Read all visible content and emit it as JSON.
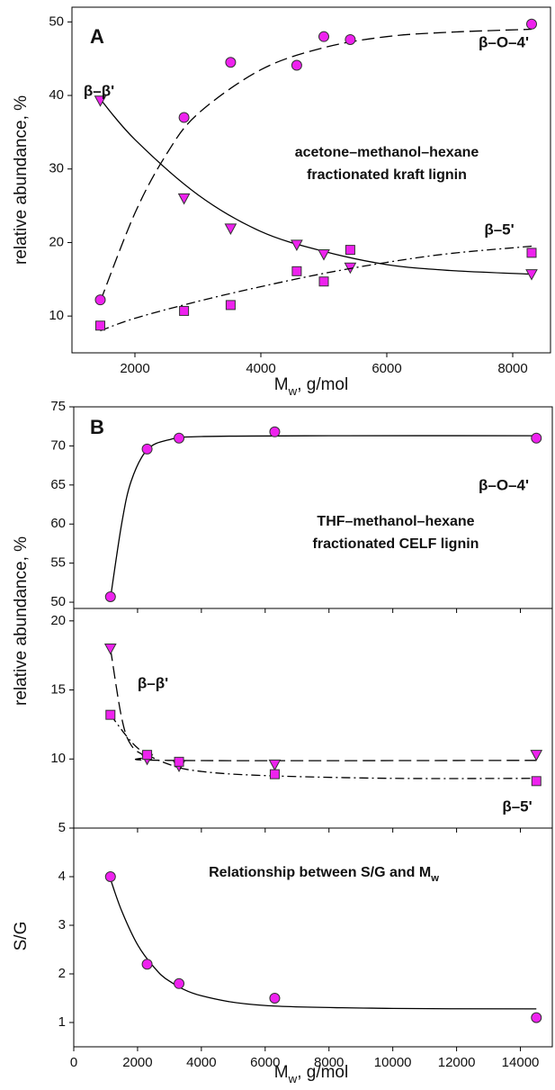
{
  "chart_data": [
    {
      "type": "scatter",
      "panel": "A",
      "x_label": [
        "M",
        "w",
        ", g/mol"
      ],
      "y_label": "relative abundance, %",
      "annotations": [
        "acetone–methanol–hexane",
        "fractionated kraft lignin"
      ],
      "xlim": [
        1000,
        8600
      ],
      "xticks": [
        2000,
        4000,
        6000,
        8000
      ],
      "xtick_labels": true,
      "ylim": [
        5,
        52
      ],
      "yticks": [
        10,
        20,
        30,
        40,
        50
      ],
      "series": [
        {
          "name": "β–O–4'",
          "marker": "circle",
          "color": "#ee22ee",
          "line_style": "dashed",
          "x": [
            1450,
            2780,
            3520,
            4570,
            5000,
            5420,
            8300
          ],
          "values": [
            12.2,
            37,
            44.5,
            44.1,
            48,
            47.6,
            49.7
          ],
          "fit": {
            "x": [
              1450,
              2000,
              2500,
              3000,
              4000,
              5000,
              6000,
              7000,
              8300
            ],
            "values": [
              12,
              24,
              32,
              37.5,
              43.5,
              46.5,
              48,
              48.6,
              49
            ]
          }
        },
        {
          "name": "β–β'",
          "marker": "triangle",
          "color": "#ee22ee",
          "line_style": "solid",
          "x": [
            1450,
            2780,
            3520,
            4570,
            5000,
            5420,
            8300
          ],
          "values": [
            39.3,
            26,
            21.9,
            19.7,
            18.4,
            16.6,
            15.7
          ],
          "fit": {
            "x": [
              1450,
              2000,
              3000,
              4000,
              5000,
              6000,
              7000,
              8300
            ],
            "values": [
              39.5,
              34,
              26.5,
              21.5,
              18.8,
              17,
              16.2,
              15.7
            ]
          }
        },
        {
          "name": "β–5'",
          "marker": "square",
          "color": "#ee22ee",
          "line_style": "dashdot",
          "x": [
            1450,
            2780,
            3520,
            4570,
            5000,
            5420,
            8300
          ],
          "values": [
            8.7,
            10.7,
            11.5,
            16.1,
            14.7,
            19,
            18.6
          ],
          "fit": {
            "x": [
              1450,
              2000,
              3000,
              4000,
              5000,
              6000,
              7000,
              8300
            ],
            "values": [
              8,
              9.7,
              12,
              14,
              15.8,
              17.3,
              18.5,
              19.5
            ]
          }
        }
      ]
    },
    {
      "type": "scatter",
      "panel": "B",
      "annotations": [
        "THF–methanol–hexane",
        "fractionated CELF lignin"
      ],
      "xlim": [
        0,
        15000
      ],
      "xticks": [
        2000,
        4000,
        6000,
        8000,
        10000,
        12000,
        14000
      ],
      "xtick_labels": false,
      "ylim": [
        49.2,
        75
      ],
      "yticks": [
        50,
        55,
        60,
        65,
        70,
        75
      ],
      "series": [
        {
          "name": "β–O–4'",
          "marker": "circle",
          "color": "#ee22ee",
          "line_style": "solid",
          "x": [
            1150,
            2300,
            3300,
            6300,
            14500
          ],
          "values": [
            50.7,
            69.6,
            71,
            71.8,
            71
          ],
          "fit": {
            "x": [
              1150,
              1500,
              1800,
              2300,
              3000,
              4000,
              8000,
              14500
            ],
            "values": [
              50.5,
              60,
              65.5,
              69.5,
              70.8,
              71.2,
              71.3,
              71.3
            ]
          }
        }
      ]
    },
    {
      "type": "scatter",
      "y_label": "relative abundance, %",
      "xlim": [
        0,
        15000
      ],
      "xticks": [
        2000,
        4000,
        6000,
        8000,
        10000,
        12000,
        14000
      ],
      "xtick_labels": false,
      "ylim": [
        5,
        20.9
      ],
      "yticks": [
        5,
        10,
        15,
        20
      ],
      "series": [
        {
          "name": "β–β'",
          "marker": "triangle",
          "color": "#ee22ee",
          "line_style": "dashed",
          "x": [
            1150,
            2300,
            3300,
            6300,
            14500
          ],
          "values": [
            18,
            10,
            9.5,
            9.6,
            10.3
          ],
          "fit": {
            "x": [
              1150,
              1500,
              1800,
              2300,
              3000,
              14500
            ],
            "values": [
              18,
              13,
              11,
              10.2,
              9.9,
              9.9
            ]
          }
        },
        {
          "name": "β–5'",
          "marker": "square",
          "color": "#ee22ee",
          "line_style": "dashdot",
          "x": [
            1150,
            2300,
            3300,
            6300,
            14500
          ],
          "values": [
            13.2,
            10.3,
            9.8,
            8.9,
            8.4
          ],
          "fit": {
            "x": [
              1150,
              2000,
              3000,
              4000,
              6000,
              10000,
              14500
            ],
            "values": [
              13.2,
              10.8,
              9.6,
              9.1,
              8.8,
              8.6,
              8.6
            ]
          }
        }
      ]
    },
    {
      "type": "scatter",
      "x_label": [
        "M",
        "w",
        ", g/mol"
      ],
      "y_label": "S/G",
      "annotations": [
        [
          "Relationship between S/G and M",
          "w"
        ]
      ],
      "xlim": [
        0,
        15000
      ],
      "xticks": [
        0,
        2000,
        4000,
        6000,
        8000,
        10000,
        12000,
        14000
      ],
      "xtick_labels": true,
      "ylim": [
        0.5,
        5
      ],
      "yticks": [
        1,
        2,
        3,
        4
      ],
      "series": [
        {
          "marker": "circle",
          "color": "#ee22ee",
          "line_style": "solid",
          "x": [
            1150,
            2300,
            3300,
            6300,
            14500
          ],
          "values": [
            4,
            2.2,
            1.8,
            1.5,
            1.1
          ],
          "fit": {
            "x": [
              1150,
              1500,
              2000,
              2500,
              3000,
              4000,
              6000,
              10000,
              14500
            ],
            "values": [
              3.95,
              3.3,
              2.6,
              2.15,
              1.85,
              1.55,
              1.35,
              1.29,
              1.28
            ]
          }
        }
      ]
    }
  ]
}
